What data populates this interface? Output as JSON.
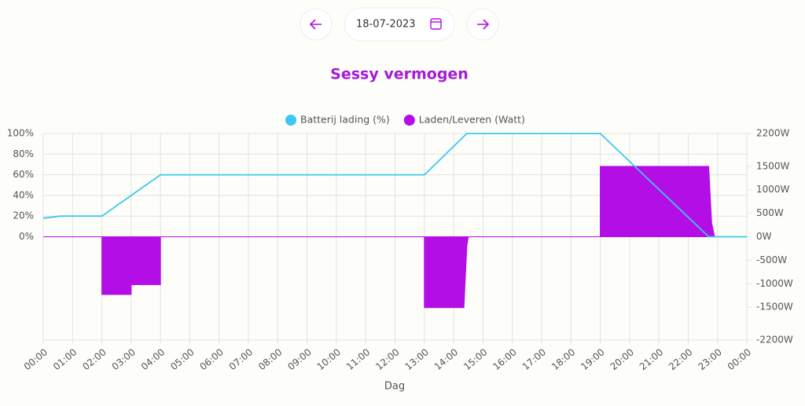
{
  "date_picker": {
    "date": "18-07-2023"
  },
  "chart_data": {
    "type": "line",
    "title": "Sessy vermogen",
    "x_label": "Dag",
    "xlim": [
      0,
      24
    ],
    "xticks": [
      {
        "value": 0,
        "label": "00:00"
      },
      {
        "value": 1,
        "label": "01:00"
      },
      {
        "value": 2,
        "label": "02:00"
      },
      {
        "value": 3,
        "label": "03:00"
      },
      {
        "value": 4,
        "label": "04:00"
      },
      {
        "value": 5,
        "label": "05:00"
      },
      {
        "value": 6,
        "label": "06:00"
      },
      {
        "value": 7,
        "label": "07:00"
      },
      {
        "value": 8,
        "label": "08:00"
      },
      {
        "value": 9,
        "label": "09:00"
      },
      {
        "value": 10,
        "label": "10:00"
      },
      {
        "value": 11,
        "label": "11:00"
      },
      {
        "value": 12,
        "label": "12:00"
      },
      {
        "value": 13,
        "label": "13:00"
      },
      {
        "value": 14,
        "label": "14:00"
      },
      {
        "value": 15,
        "label": "15:00"
      },
      {
        "value": 16,
        "label": "16:00"
      },
      {
        "value": 17,
        "label": "17:00"
      },
      {
        "value": 18,
        "label": "18:00"
      },
      {
        "value": 19,
        "label": "19:00"
      },
      {
        "value": 20,
        "label": "20:00"
      },
      {
        "value": 21,
        "label": "21:00"
      },
      {
        "value": 22,
        "label": "22:00"
      },
      {
        "value": 23,
        "label": "23:00"
      },
      {
        "value": 24,
        "label": "00:00"
      }
    ],
    "ylim": [
      -100,
      100
    ],
    "yticks": [
      {
        "value": 0,
        "label": "0%"
      },
      {
        "value": 20,
        "label": "20%"
      },
      {
        "value": 40,
        "label": "40%"
      },
      {
        "value": 60,
        "label": "60%"
      },
      {
        "value": 80,
        "label": "80%"
      },
      {
        "value": 100,
        "label": "100%"
      }
    ],
    "y2lim": [
      -2200,
      2200
    ],
    "y2ticks": [
      {
        "value": -2200,
        "label": "-2200W"
      },
      {
        "value": -1500,
        "label": "-1500W"
      },
      {
        "value": -1000,
        "label": "-1000W"
      },
      {
        "value": -500,
        "label": "-500W"
      },
      {
        "value": 0,
        "label": "0W"
      },
      {
        "value": 500,
        "label": "500W"
      },
      {
        "value": 1000,
        "label": "1000W"
      },
      {
        "value": 1500,
        "label": "1500W"
      },
      {
        "value": 2200,
        "label": "2200W"
      }
    ],
    "grid": true,
    "series": [
      {
        "name": "Batterij lading (%)",
        "color": "#3ec8f0",
        "type": "line",
        "x": [
          0,
          0.6,
          2,
          3,
          4,
          13,
          14.45,
          19,
          22.7,
          23,
          24
        ],
        "values": [
          18,
          20,
          20,
          40,
          60,
          60,
          100,
          100,
          0,
          0,
          0
        ]
      },
      {
        "name": "Laden/Leveren (Watt)",
        "color": "#b40ee6",
        "type": "area",
        "axis": "y2",
        "x": [
          0,
          2,
          2,
          3,
          3,
          4,
          4,
          13,
          13,
          14.35,
          14.45,
          14.5,
          19,
          19,
          22.7,
          22.8,
          22.9,
          24
        ],
        "values": [
          0,
          0,
          -1230,
          -1230,
          -1020,
          -1020,
          0,
          0,
          -1510,
          -1510,
          -200,
          0,
          0,
          1500,
          1500,
          300,
          0,
          0
        ]
      }
    ]
  }
}
